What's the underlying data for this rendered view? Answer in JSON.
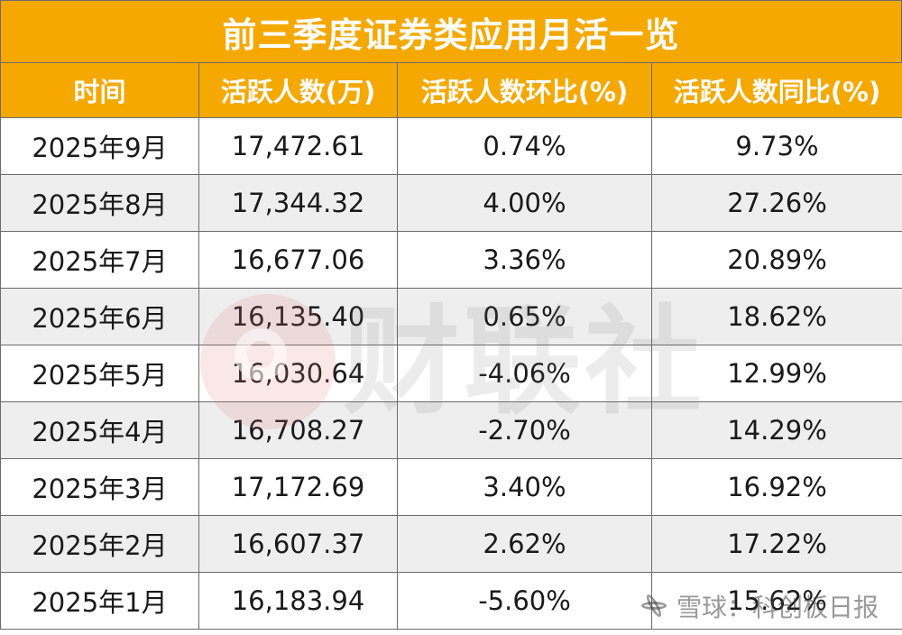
{
  "title": "前三季度证券类应用月活一览",
  "columns": [
    "时间",
    "活跃人数(万)",
    "活跃人数环比(%)",
    "活跃人数同比(%)"
  ],
  "rows": [
    {
      "month": "2025年9月",
      "active": "17,472.61",
      "mom": "0.74%",
      "yoy": "9.73%"
    },
    {
      "month": "2025年8月",
      "active": "17,344.32",
      "mom": "4.00%",
      "yoy": "27.26%"
    },
    {
      "month": "2025年7月",
      "active": "16,677.06",
      "mom": "3.36%",
      "yoy": "20.89%"
    },
    {
      "month": "2025年6月",
      "active": "16,135.40",
      "mom": "0.65%",
      "yoy": "18.62%"
    },
    {
      "month": "2025年5月",
      "active": "16,030.64",
      "mom": "-4.06%",
      "yoy": "12.99%"
    },
    {
      "month": "2025年4月",
      "active": "16,708.27",
      "mom": "-2.70%",
      "yoy": "14.29%"
    },
    {
      "month": "2025年3月",
      "active": "17,172.69",
      "mom": "3.40%",
      "yoy": "16.92%"
    },
    {
      "month": "2025年2月",
      "active": "16,607.37",
      "mom": "2.62%",
      "yoy": "17.22%"
    },
    {
      "month": "2025年1月",
      "active": "16,183.94",
      "mom": "-5.60%",
      "yoy": "15.62%"
    }
  ],
  "watermark": {
    "text": "财联社",
    "icon": "cls-logo-icon"
  },
  "corner_mark": {
    "text": "雪球：科创板日报",
    "icon": "snowball-logo-icon"
  },
  "colors": {
    "header_bg": "#F5A800",
    "header_text": "#ffffff",
    "row_alt_bg": "#eeeeee",
    "border": "#6b6b6b"
  }
}
